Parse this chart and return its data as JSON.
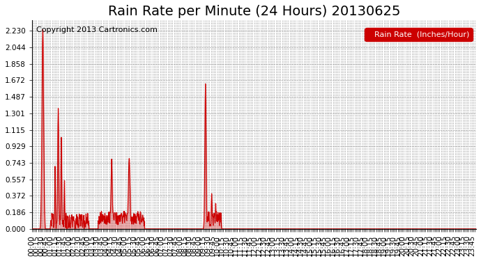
{
  "title": "Rain Rate per Minute (24 Hours) 20130625",
  "copyright_text": "Copyright 2013 Cartronics.com",
  "legend_label": "Rain Rate  (Inches/Hour)",
  "line_color": "#cc0000",
  "legend_bg": "#cc0000",
  "legend_text_color": "#ffffff",
  "background_color": "#ffffff",
  "grid_color": "#aaaaaa",
  "axis_label_color": "#000000",
  "yticks": [
    0.0,
    0.186,
    0.372,
    0.557,
    0.743,
    0.929,
    1.115,
    1.301,
    1.487,
    1.672,
    1.858,
    2.044,
    2.23
  ],
  "ylim": [
    0.0,
    2.35
  ],
  "total_minutes": 1440,
  "xtick_interval": 5,
  "xtick_label_interval": 15,
  "title_fontsize": 14,
  "axis_fontsize": 7.5,
  "copyright_fontsize": 8
}
